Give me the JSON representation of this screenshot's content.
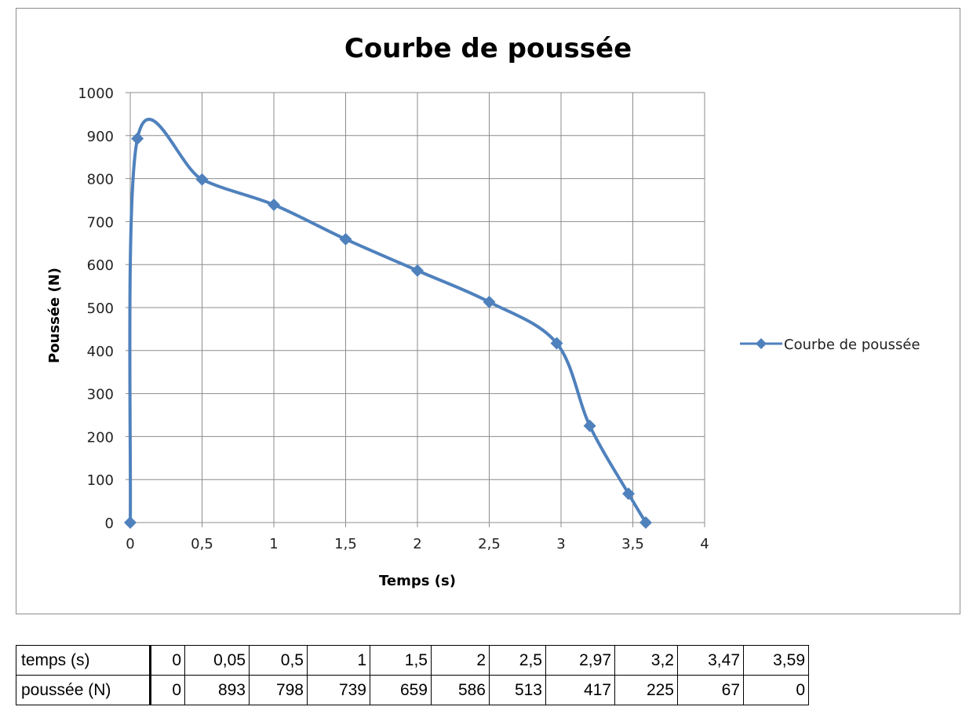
{
  "chart_data": {
    "type": "line",
    "title": "Courbe de poussée",
    "xlabel": "Temps (s)",
    "ylabel": "Poussée (N)",
    "xlim": [
      0,
      4
    ],
    "ylim": [
      0,
      1000
    ],
    "x_ticks": [
      "0",
      "0,5",
      "1",
      "1,5",
      "2",
      "2,5",
      "3",
      "3,5",
      "4"
    ],
    "y_ticks": [
      "0",
      "100",
      "200",
      "300",
      "400",
      "500",
      "600",
      "700",
      "800",
      "900",
      "1000"
    ],
    "grid": true,
    "legend": "right",
    "smooth": true,
    "series": [
      {
        "name": "Courbe de poussée",
        "color": "#4f81bd",
        "marker": "diamond",
        "x": [
          0,
          0.05,
          0.5,
          1,
          1.5,
          2,
          2.5,
          2.97,
          3.2,
          3.47,
          3.59
        ],
        "y": [
          0,
          893,
          798,
          739,
          659,
          586,
          513,
          417,
          225,
          67,
          0
        ]
      }
    ]
  },
  "table": {
    "rows": [
      {
        "header": "temps (s)",
        "cells": [
          "0",
          "0,05",
          "0,5",
          "1",
          "1,5",
          "2",
          "2,5",
          "2,97",
          "3,2",
          "3,47",
          "3,59"
        ]
      },
      {
        "header": "poussée (N)",
        "cells": [
          "0",
          "893",
          "798",
          "739",
          "659",
          "586",
          "513",
          "417",
          "225",
          "67",
          "0"
        ]
      }
    ]
  }
}
